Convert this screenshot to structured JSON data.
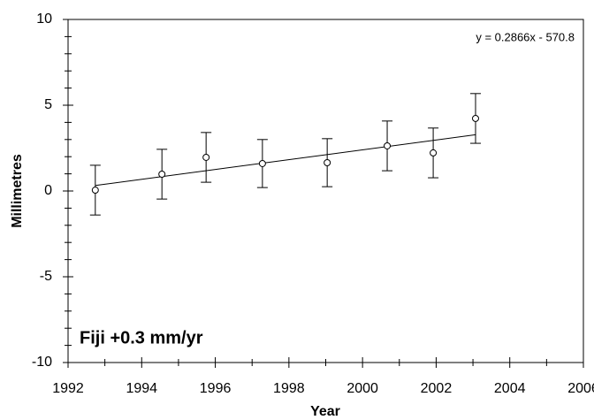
{
  "chart_data": {
    "type": "scatter",
    "annotation": "Fiji +0.3 mm/yr",
    "xlabel": "Year",
    "ylabel": "Millimetres",
    "xlim": [
      1992,
      2006
    ],
    "xticks": [
      1992,
      1994,
      1996,
      1998,
      2000,
      2002,
      2004,
      2006
    ],
    "xminorticks": [
      1993,
      1995,
      1997,
      1999,
      2001,
      2003,
      2005
    ],
    "ylim": [
      -10,
      10
    ],
    "yticks": [
      -10,
      -5,
      0,
      5,
      10
    ],
    "yminorticks": [
      -9,
      -8,
      -7,
      -6,
      -4,
      -3,
      -2,
      -1,
      1,
      2,
      3,
      4,
      6,
      7,
      8,
      9
    ],
    "series": [
      {
        "color": "#000000",
        "x": [
          1992.74,
          1994.55,
          1995.75,
          1997.28,
          1999.04,
          2000.67,
          2001.92,
          2003.07
        ],
        "values": [
          0.05,
          0.98,
          1.96,
          1.6,
          1.65,
          2.63,
          2.22,
          4.23
        ],
        "errors": [
          1.45,
          1.45,
          1.45,
          1.4,
          1.4,
          1.45,
          1.45,
          1.45
        ]
      }
    ],
    "trend": {
      "label": "y = 0.2866x - 570.8",
      "slope": 0.2866,
      "intercept": -570.8
    }
  }
}
